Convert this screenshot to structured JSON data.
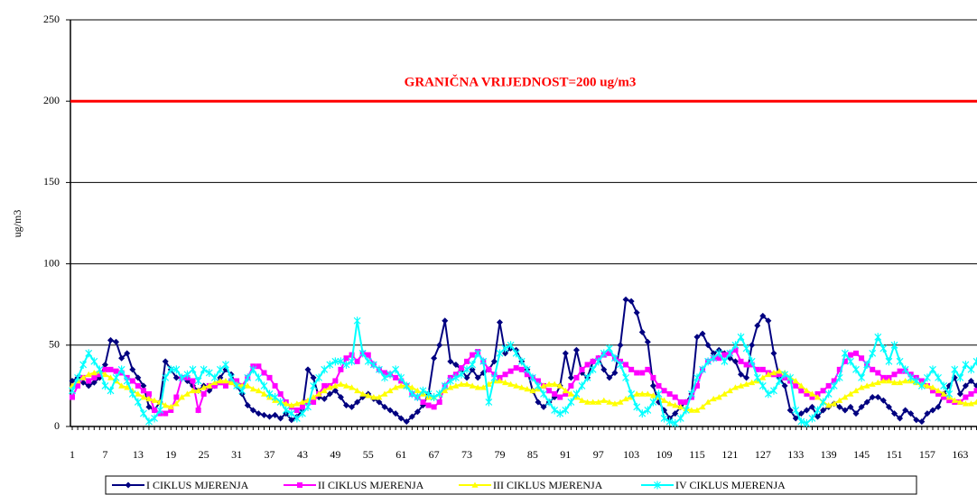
{
  "chart_data": {
    "type": "line",
    "y_label": "ug/m3",
    "ylim": [
      0,
      250
    ],
    "yticks": [
      0,
      50,
      100,
      150,
      200,
      250
    ],
    "grid": true,
    "legend": "bottom",
    "limit_line": {
      "value": 200,
      "label": "GRANIČNA VRIJEDNOST=200 ug/m3",
      "color": "#ff0000"
    },
    "categories": [
      1,
      null,
      null,
      null,
      null,
      null,
      7,
      null,
      null,
      null,
      null,
      null,
      13,
      null,
      null,
      null,
      null,
      null,
      19,
      null,
      null,
      null,
      null,
      null,
      25,
      null,
      null,
      null,
      null,
      null,
      31,
      null,
      null,
      null,
      null,
      null,
      37,
      null,
      null,
      null,
      null,
      null,
      43,
      null,
      null,
      null,
      null,
      null,
      49,
      null,
      null,
      null,
      null,
      null,
      55,
      null,
      null,
      null,
      null,
      null,
      61,
      null,
      null,
      null,
      null,
      null,
      67,
      null,
      null,
      null,
      null,
      null,
      73,
      null,
      null,
      null,
      null,
      null,
      79,
      null,
      null,
      null,
      null,
      null,
      85,
      null,
      null,
      null,
      null,
      null,
      91,
      null,
      null,
      null,
      null,
      null,
      97,
      null,
      null,
      null,
      null,
      null,
      103,
      null,
      null,
      null,
      null,
      null,
      109,
      null,
      null,
      null,
      null,
      null,
      115,
      null,
      null,
      null,
      null,
      null,
      121,
      null,
      null,
      null,
      null,
      null,
      127,
      null,
      null,
      null,
      null,
      null,
      133,
      null,
      null,
      null,
      null,
      null,
      139,
      null,
      null,
      null,
      null,
      null,
      145,
      null,
      null,
      null,
      null,
      null,
      151,
      null,
      null,
      null,
      null,
      null,
      157,
      null,
      null,
      null,
      null,
      null,
      163,
      null,
      null,
      null
    ],
    "series": [
      {
        "name": "I CIKLUS MJERENJA",
        "color": "#000080",
        "marker": "diamond",
        "values": [
          28,
          30,
          27,
          25,
          27,
          30,
          38,
          53,
          52,
          42,
          45,
          35,
          30,
          25,
          12,
          10,
          15,
          40,
          35,
          30,
          30,
          28,
          25,
          22,
          25,
          22,
          25,
          30,
          35,
          32,
          25,
          20,
          13,
          10,
          8,
          7,
          6,
          7,
          5,
          8,
          4,
          6,
          10,
          35,
          30,
          18,
          17,
          20,
          22,
          18,
          13,
          12,
          15,
          18,
          20,
          17,
          15,
          12,
          10,
          8,
          5,
          3,
          6,
          9,
          13,
          20,
          42,
          50,
          65,
          40,
          38,
          35,
          30,
          35,
          30,
          33,
          35,
          40,
          64,
          45,
          48,
          47,
          40,
          35,
          22,
          15,
          12,
          15,
          18,
          25,
          45,
          30,
          47,
          33,
          30,
          40,
          42,
          35,
          30,
          33,
          50,
          78,
          77,
          70,
          58,
          52,
          25,
          15,
          10,
          5,
          8,
          12,
          15,
          20,
          55,
          57,
          50,
          45,
          47,
          45,
          42,
          40,
          32,
          30,
          50,
          62,
          68,
          65,
          45,
          30,
          25,
          10,
          5,
          8,
          10,
          12,
          6,
          10,
          12,
          14,
          12,
          10,
          12,
          8,
          12,
          15,
          18,
          18,
          16,
          12,
          8,
          5,
          10,
          8,
          4,
          3,
          8,
          10,
          12,
          20,
          25,
          30,
          20,
          25,
          28,
          25
        ]
      },
      {
        "name": "II CIKLUS MJERENJA",
        "color": "#ff00ff",
        "marker": "square",
        "values": [
          18,
          25,
          30,
          28,
          30,
          32,
          35,
          35,
          34,
          33,
          30,
          28,
          25,
          22,
          20,
          10,
          8,
          8,
          10,
          18,
          30,
          30,
          28,
          10,
          20,
          25,
          25,
          27,
          25,
          28,
          28,
          25,
          30,
          37,
          37,
          33,
          30,
          25,
          20,
          15,
          12,
          10,
          12,
          15,
          15,
          20,
          25,
          25,
          28,
          35,
          42,
          44,
          40,
          45,
          44,
          38,
          35,
          33,
          32,
          30,
          28,
          25,
          20,
          18,
          15,
          13,
          12,
          15,
          25,
          30,
          32,
          36,
          40,
          44,
          46,
          40,
          35,
          32,
          30,
          32,
          34,
          36,
          35,
          32,
          30,
          28,
          25,
          22,
          20,
          18,
          20,
          25,
          30,
          35,
          38,
          40,
          42,
          44,
          45,
          42,
          40,
          38,
          35,
          33,
          33,
          35,
          30,
          25,
          22,
          20,
          18,
          15,
          15,
          18,
          25,
          35,
          40,
          42,
          42,
          44,
          45,
          47,
          40,
          38,
          38,
          35,
          35,
          33,
          32,
          32,
          30,
          28,
          25,
          22,
          20,
          18,
          20,
          22,
          25,
          28,
          35,
          40,
          44,
          45,
          42,
          38,
          35,
          33,
          30,
          30,
          32,
          34,
          34,
          32,
          30,
          28,
          25,
          22,
          20,
          18,
          16,
          15,
          15,
          18,
          20,
          22
        ]
      },
      {
        "name": "III CIKLUS MJERENJA",
        "color": "#ffff00",
        "marker": "triangle",
        "values": [
          25,
          28,
          30,
          32,
          33,
          34,
          32,
          30,
          28,
          25,
          24,
          22,
          20,
          18,
          17,
          16,
          15,
          13,
          12,
          14,
          18,
          20,
          22,
          22,
          24,
          25,
          27,
          28,
          28,
          27,
          26,
          25,
          25,
          23,
          22,
          20,
          18,
          16,
          15,
          14,
          13,
          14,
          15,
          16,
          18,
          20,
          22,
          24,
          25,
          26,
          25,
          24,
          22,
          20,
          19,
          18,
          18,
          20,
          22,
          24,
          25,
          25,
          24,
          22,
          20,
          18,
          18,
          20,
          22,
          24,
          25,
          26,
          26,
          25,
          24,
          24,
          26,
          28,
          28,
          27,
          26,
          25,
          24,
          23,
          22,
          23,
          25,
          26,
          26,
          25,
          22,
          20,
          18,
          16,
          15,
          15,
          15,
          16,
          15,
          14,
          15,
          17,
          18,
          20,
          20,
          20,
          19,
          18,
          16,
          14,
          13,
          12,
          11,
          10,
          10,
          12,
          15,
          17,
          18,
          20,
          22,
          24,
          25,
          26,
          27,
          28,
          30,
          32,
          33,
          34,
          33,
          30,
          28,
          25,
          22,
          20,
          18,
          15,
          13,
          14,
          16,
          18,
          20,
          22,
          24,
          25,
          26,
          27,
          28,
          28,
          27,
          27,
          28,
          28,
          27,
          26,
          25,
          24,
          22,
          20,
          18,
          16,
          15,
          14,
          14,
          15
        ]
      },
      {
        "name": "IV CIKLUS MJERENJA",
        "color": "#00ffff",
        "marker": "star",
        "values": [
          22,
          30,
          38,
          45,
          40,
          35,
          25,
          22,
          30,
          35,
          28,
          20,
          15,
          8,
          3,
          5,
          10,
          30,
          35,
          35,
          30,
          32,
          35,
          28,
          35,
          33,
          30,
          35,
          38,
          30,
          25,
          22,
          30,
          35,
          30,
          25,
          20,
          18,
          15,
          10,
          8,
          5,
          8,
          12,
          25,
          30,
          35,
          38,
          40,
          40,
          38,
          40,
          65,
          45,
          40,
          38,
          35,
          30,
          32,
          35,
          30,
          25,
          20,
          18,
          22,
          20,
          18,
          20,
          25,
          28,
          30,
          32,
          35,
          38,
          45,
          40,
          15,
          30,
          45,
          48,
          50,
          45,
          40,
          35,
          30,
          25,
          20,
          15,
          10,
          8,
          10,
          15,
          20,
          25,
          30,
          35,
          40,
          45,
          48,
          42,
          38,
          30,
          20,
          12,
          8,
          10,
          15,
          20,
          5,
          3,
          2,
          5,
          10,
          20,
          30,
          35,
          40,
          42,
          45,
          40,
          45,
          50,
          55,
          48,
          40,
          30,
          25,
          20,
          22,
          28,
          32,
          30,
          10,
          3,
          2,
          5,
          10,
          15,
          20,
          25,
          30,
          45,
          40,
          35,
          30,
          38,
          45,
          55,
          48,
          40,
          50,
          40,
          35,
          30,
          28,
          25,
          30,
          35,
          30,
          25,
          20,
          35,
          30,
          38,
          35,
          40
        ]
      }
    ]
  }
}
